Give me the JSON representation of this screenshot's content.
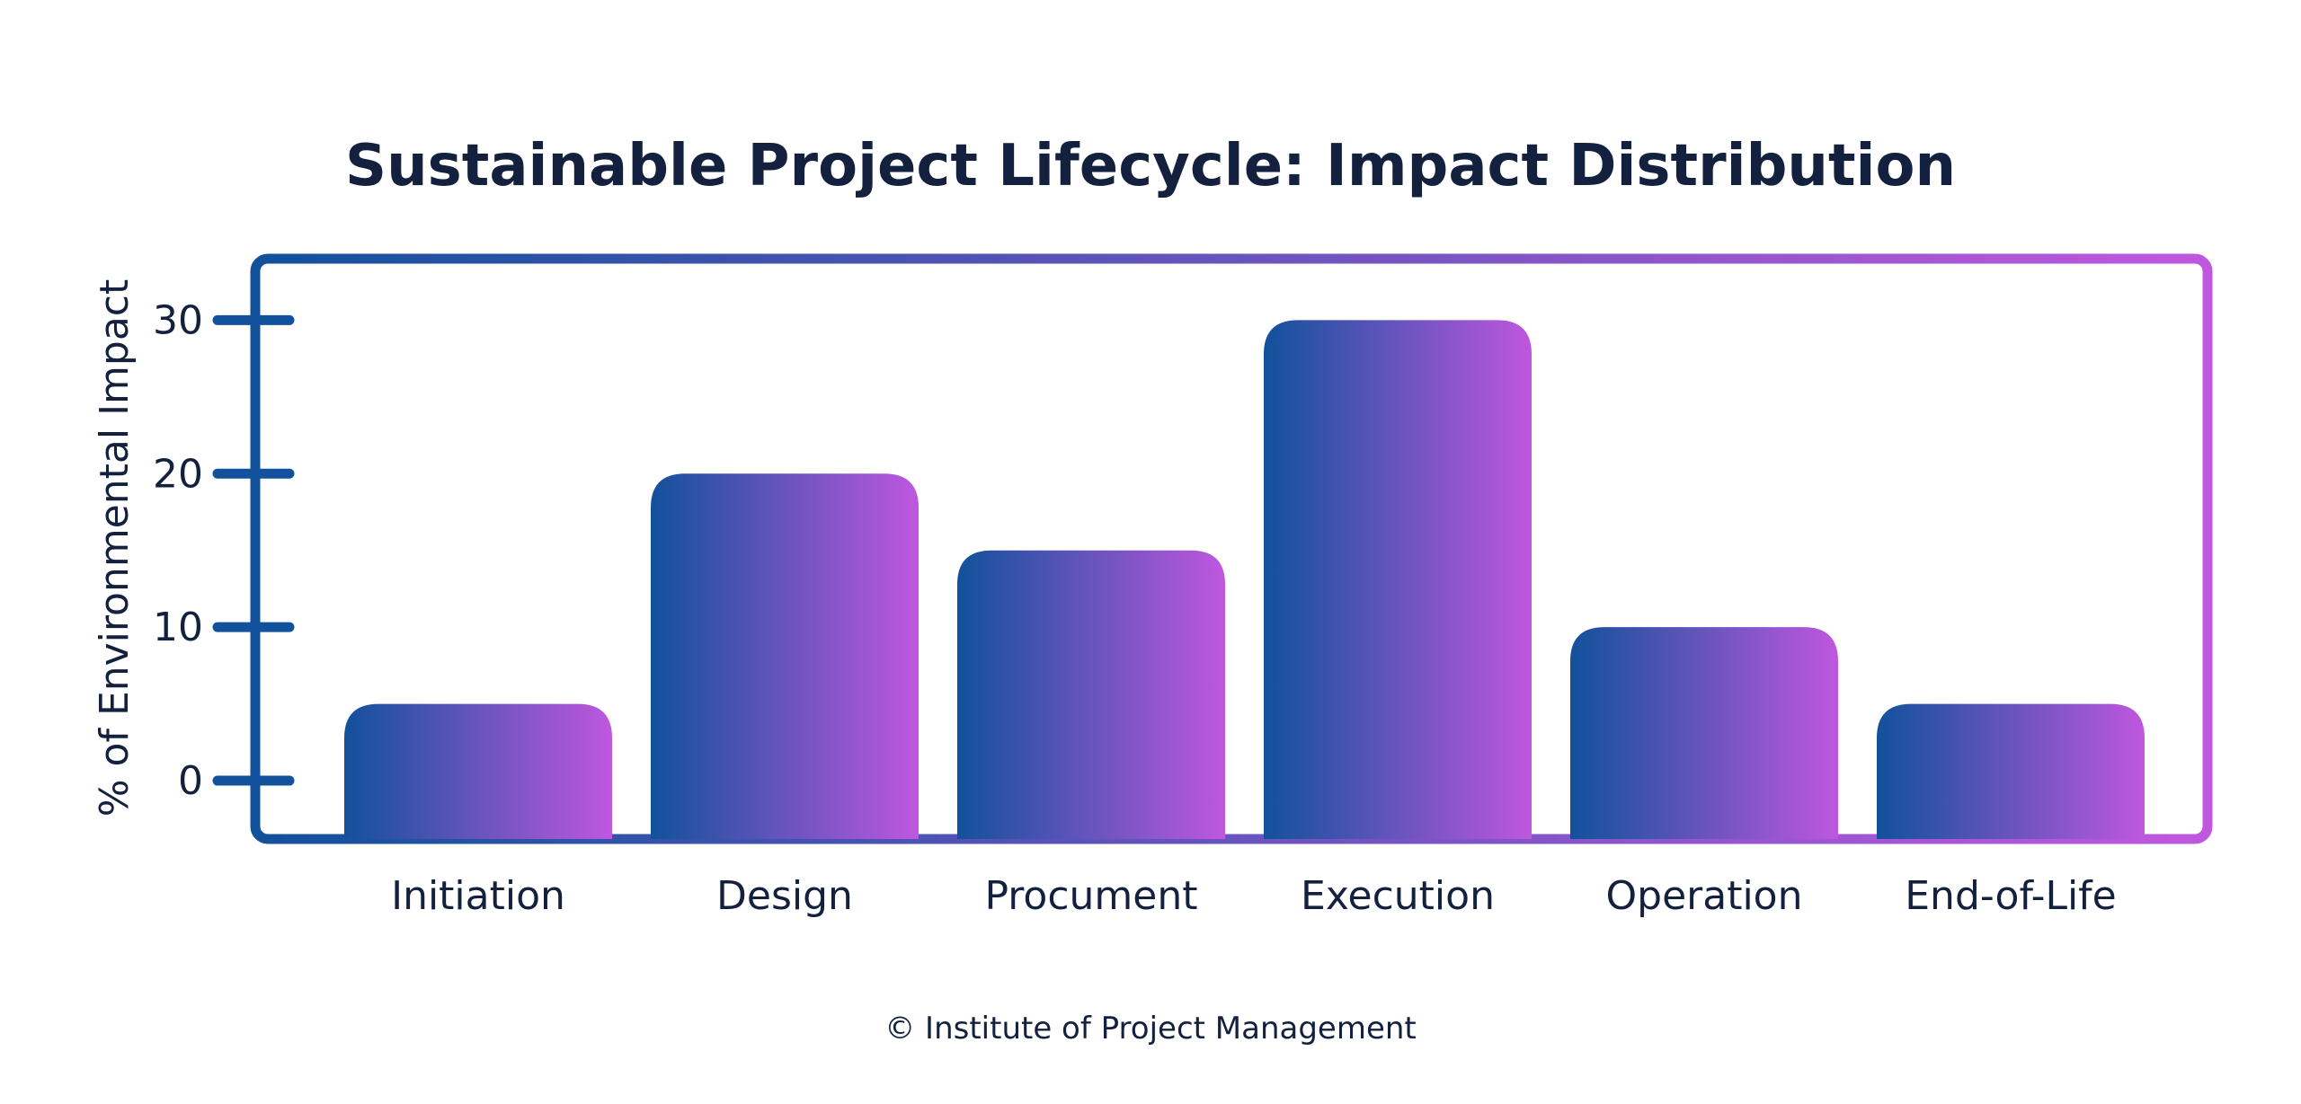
{
  "colors": {
    "text": "#13213f",
    "gradient_start": "#12519b",
    "gradient_end": "#bf57df",
    "background": "#ffffff"
  },
  "chart_data": {
    "type": "bar",
    "title": "Sustainable Project Lifecycle: Impact Distribution",
    "ylabel": "% of Environmental Impact",
    "xlabel": "",
    "categories": [
      "Initiation",
      "Design",
      "Procument",
      "Execution",
      "Operation",
      "End-of-Life"
    ],
    "values": [
      5,
      20,
      15,
      30,
      10,
      5
    ],
    "ylim": [
      -3.8,
      34
    ],
    "yticks": [
      0,
      10,
      20,
      30
    ],
    "grid": false,
    "legend": "none"
  },
  "credit": "© Institute of Project Management"
}
